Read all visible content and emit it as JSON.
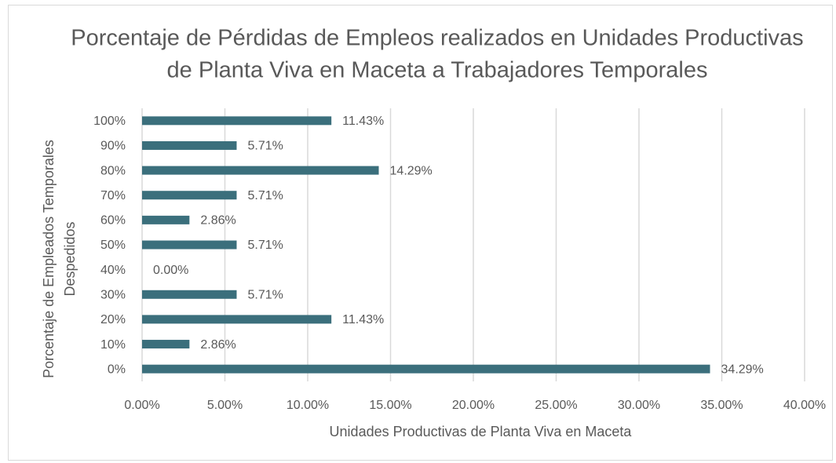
{
  "chart_data": {
    "type": "hbar",
    "title": [
      "Porcentaje de Pérdidas de Empleos realizados en Unidades Productivas",
      "de Planta Viva en Maceta a Trabajadores Temporales"
    ],
    "x_label": "Unidades Productivas de Planta Viva en Maceta",
    "y_label": [
      "Porcentaje de Empleados Temporales",
      "Despedidos"
    ],
    "categories": [
      "0%",
      "10%",
      "20%",
      "30%",
      "40%",
      "50%",
      "60%",
      "70%",
      "80%",
      "90%",
      "100%"
    ],
    "values": [
      34.29,
      2.86,
      11.43,
      5.71,
      0.0,
      5.71,
      2.86,
      5.71,
      14.29,
      5.71,
      11.43
    ],
    "value_labels": [
      "34.29%",
      "2.86%",
      "11.43%",
      "5.71%",
      "0.00%",
      "5.71%",
      "2.86%",
      "5.71%",
      "14.29%",
      "5.71%",
      "11.43%"
    ],
    "color": "#3b6f7c",
    "xlim": [
      0,
      40
    ],
    "xticks": [
      {
        "value": 0,
        "label": "0.00%"
      },
      {
        "value": 5,
        "label": "5.00%"
      },
      {
        "value": 10,
        "label": "10.00%"
      },
      {
        "value": 15,
        "label": "15.00%"
      },
      {
        "value": 20,
        "label": "20.00%"
      },
      {
        "value": 25,
        "label": "25.00%"
      },
      {
        "value": 30,
        "label": "30.00%"
      },
      {
        "value": 35,
        "label": "35.00%"
      },
      {
        "value": 40,
        "label": "40.00%"
      }
    ],
    "grid": true
  }
}
